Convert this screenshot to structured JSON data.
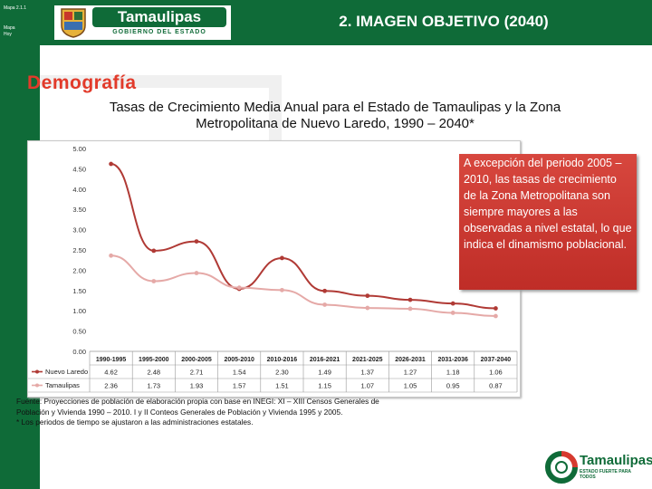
{
  "header": {
    "tiny_text_1": "Mapa 2.1.1",
    "tiny_text_2": "Mapa",
    "tiny_text_3": "Hoy",
    "logo_word": "Tamaulipas",
    "logo_sub": "GOBIERNO DEL ESTADO",
    "slide_title": "2. IMAGEN OBJETIVO (2040)"
  },
  "section": {
    "title": "Demografía",
    "subtitle_line1": "Tasas de Crecimiento Media Anual para el Estado de Tamaulipas y la Zona",
    "subtitle_line2": "Metropolitana de Nuevo Laredo, 1990 – 2040*"
  },
  "note": {
    "text": "A excepción del periodo 2005 – 2010, las tasas de crecimiento de la Zona Metropolitana son siempre mayores a las observadas a nivel estatal, lo que indica el dinamismo poblacional."
  },
  "footnote": {
    "line1": "Fuente: Proyecciones de población de elaboración propia con base en INEGI: XI – XIII Censos Generales de",
    "line2": "Población y Vivienda 1990 – 2010. I y II Conteos Generales de Población y Vivienda 1995 y 2005.",
    "line3": "* Los periodos de tiempo se ajustaron a las administraciones estatales."
  },
  "bottom_logo": {
    "word": "Tamaulipas",
    "sub": "ESTADO FUERTE PARA TODOS"
  },
  "colors": {
    "brand_green": "#0f6b38",
    "title_red": "#e23a2a",
    "series_nl": "#b03a35",
    "series_tam": "#e5a9a7"
  },
  "chart_data": {
    "type": "line",
    "title": "Tasas de Crecimiento Media Anual",
    "categories": [
      "1990-1995",
      "1995-2000",
      "2000-2005",
      "2005-2010",
      "2010-2016",
      "2016-2021",
      "2021-2025",
      "2026-2031",
      "2031-2036",
      "2037-2040"
    ],
    "ylim": [
      0,
      5
    ],
    "yticks": [
      "5.00",
      "4.50",
      "4.00",
      "3.50",
      "3.00",
      "2.50",
      "2.00",
      "1.50",
      "1.00",
      "0.50",
      "0.00"
    ],
    "series": [
      {
        "name": "Nuevo Laredo",
        "values": [
          4.62,
          2.48,
          2.71,
          1.54,
          2.3,
          1.49,
          1.37,
          1.27,
          1.18,
          1.06
        ],
        "labels": [
          "4.62",
          "2.48",
          "2.71",
          "1.54",
          "2.30",
          "1.49",
          "1.37",
          "1.27",
          "1.18",
          "1.06"
        ]
      },
      {
        "name": "Tamaulipas",
        "values": [
          2.36,
          1.73,
          1.93,
          1.57,
          1.51,
          1.15,
          1.07,
          1.05,
          0.95,
          0.87
        ],
        "labels": [
          "2.36",
          "1.73",
          "1.93",
          "1.57",
          "1.51",
          "1.15",
          "1.07",
          "1.05",
          "0.95",
          "0.87"
        ]
      }
    ]
  }
}
